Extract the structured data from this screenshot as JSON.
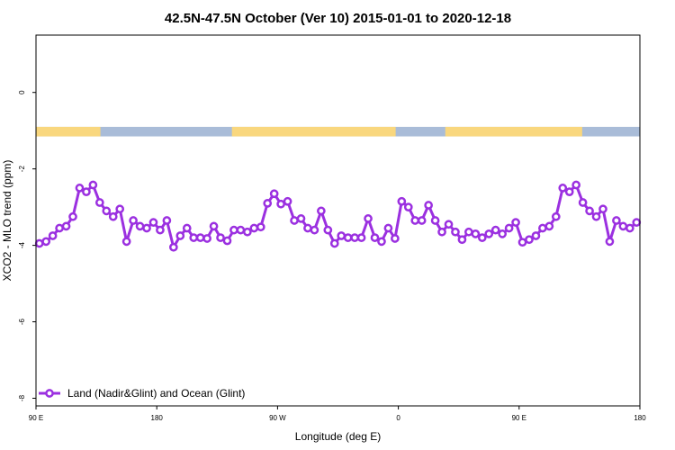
{
  "chart_data": {
    "type": "line",
    "title": "42.5N-47.5N October (Ver 10)   2015-01-01 to 2020-12-18",
    "xlabel": "Longitude (deg E)",
    "ylabel": "XCO2 - MLO trend (ppm)",
    "xlim": [
      90,
      540
    ],
    "ylim": [
      -8.2,
      1.5
    ],
    "x_ticks": [
      {
        "value": 90,
        "label": "90 E"
      },
      {
        "value": 180,
        "label": "180"
      },
      {
        "value": 270,
        "label": "90 W"
      },
      {
        "value": 360,
        "label": "0"
      },
      {
        "value": 450,
        "label": "90 E"
      },
      {
        "value": 540,
        "label": "180"
      }
    ],
    "y_ticks": [
      {
        "value": 0,
        "label": "0"
      },
      {
        "value": -2,
        "label": "-2"
      },
      {
        "value": -4,
        "label": "-4"
      },
      {
        "value": -6,
        "label": "-6"
      },
      {
        "value": -8,
        "label": "-8"
      }
    ],
    "land_ocean_strip": {
      "y_range": [
        -1.15,
        -0.9
      ],
      "land_color": "#f9d77e",
      "ocean_color": "#a9bcd8",
      "land_segments": [
        [
          90,
          138
        ],
        [
          236,
          358
        ],
        [
          395,
          497
        ]
      ]
    },
    "legend": {
      "position": "bottom-left"
    },
    "series": [
      {
        "name": "Land (Nadir&Glint) and Ocean (Glint)",
        "color": "#9b30e0",
        "x": [
          92.5,
          97.5,
          102.5,
          107.5,
          112.5,
          117.5,
          122.5,
          127.5,
          132.5,
          137.5,
          142.5,
          147.5,
          152.5,
          157.5,
          162.5,
          167.5,
          172.5,
          177.5,
          182.5,
          187.5,
          192.5,
          197.5,
          202.5,
          207.5,
          212.5,
          217.5,
          222.5,
          227.5,
          232.5,
          237.5,
          242.5,
          247.5,
          252.5,
          257.5,
          262.5,
          267.5,
          272.5,
          277.5,
          282.5,
          287.5,
          292.5,
          297.5,
          302.5,
          307.5,
          312.5,
          317.5,
          322.5,
          327.5,
          332.5,
          337.5,
          342.5,
          347.5,
          352.5,
          357.5,
          362.5,
          367.5,
          372.5,
          377.5,
          382.5,
          387.5,
          392.5,
          397.5,
          402.5,
          407.5,
          412.5,
          417.5,
          422.5,
          427.5,
          432.5,
          437.5,
          442.5,
          447.5,
          452.5,
          457.5,
          462.5,
          467.5,
          472.5,
          477.5,
          482.5,
          487.5,
          492.5,
          497.5,
          502.5,
          507.5,
          512.5,
          517.5,
          522.5,
          527.5,
          532.5,
          537.5
        ],
        "values": [
          -3.95,
          -3.9,
          -3.75,
          -3.55,
          -3.5,
          -3.25,
          -2.5,
          -2.6,
          -2.42,
          -2.88,
          -3.1,
          -3.25,
          -3.05,
          -3.9,
          -3.35,
          -3.5,
          -3.55,
          -3.4,
          -3.6,
          -3.35,
          -4.05,
          -3.75,
          -3.55,
          -3.8,
          -3.8,
          -3.82,
          -3.5,
          -3.8,
          -3.88,
          -3.6,
          -3.6,
          -3.65,
          -3.55,
          -3.52,
          -2.9,
          -2.65,
          -2.92,
          -2.85,
          -3.35,
          -3.3,
          -3.55,
          -3.6,
          -3.1,
          -3.6,
          -3.95,
          -3.75,
          -3.8,
          -3.8,
          -3.8,
          -3.3,
          -3.8,
          -3.9,
          -3.55,
          -3.82,
          -2.85,
          -3.0,
          -3.35,
          -3.35,
          -2.95,
          -3.35,
          -3.65,
          -3.45,
          -3.65,
          -3.85,
          -3.65,
          -3.7,
          -3.8,
          -3.7,
          -3.6,
          -3.7,
          -3.55,
          -3.4,
          -3.92,
          -3.85,
          -3.75,
          -3.55,
          -3.5,
          -3.25,
          -2.5,
          -2.6,
          -2.42,
          -2.88,
          -3.1,
          -3.25,
          -3.05,
          -3.9,
          -3.35,
          -3.5,
          -3.55,
          -3.4
        ]
      }
    ]
  }
}
